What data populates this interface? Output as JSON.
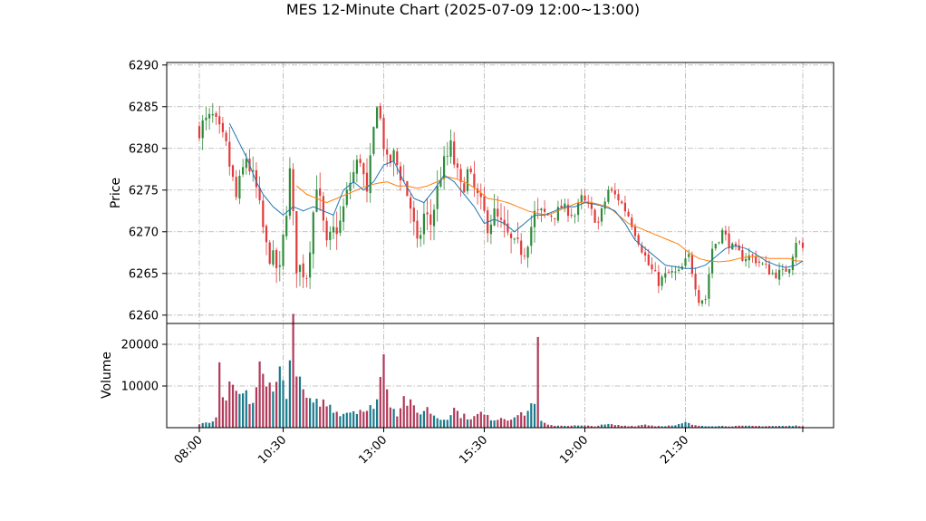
{
  "chart_data": {
    "type": "candlestick",
    "title": "MES 12-Minute Chart (2025-07-09 12:00~13:00)",
    "price_panel": {
      "ylabel": "Price",
      "ylim": [
        6259,
        6290.3
      ],
      "yticks": [
        6260,
        6265,
        6270,
        6275,
        6280,
        6285,
        6290
      ],
      "grid": true
    },
    "volume_panel": {
      "ylabel": "Volume",
      "ylim": [
        0,
        25000
      ],
      "yticks": [
        10000,
        20000
      ],
      "ytick_labels": [
        "10000",
        "20000"
      ],
      "grid": true
    },
    "x_axis": {
      "tick_labels": [
        "08:00",
        "10:30",
        "13:00",
        "15:30",
        "19:00",
        "21:30"
      ],
      "tick_rotation": 45
    },
    "colors": {
      "up": "#2e8b3a",
      "down": "#e03a3a",
      "vol_up": "#1b7a8c",
      "vol_down": "#b03a5a",
      "ma_short": "#1f77b4",
      "ma_long": "#ff7f0e"
    },
    "series": {
      "close_waypoints": [
        [
          0,
          6282.5
        ],
        [
          4,
          6283.6
        ],
        [
          8,
          6280
        ],
        [
          11,
          6274
        ],
        [
          14,
          6279
        ],
        [
          17,
          6275
        ],
        [
          20,
          6268
        ],
        [
          24,
          6265
        ],
        [
          27,
          6277
        ],
        [
          29,
          6266
        ],
        [
          32,
          6265
        ],
        [
          35,
          6276
        ],
        [
          38,
          6268
        ],
        [
          40,
          6270
        ],
        [
          42,
          6271
        ],
        [
          45,
          6276
        ],
        [
          48,
          6279
        ],
        [
          50,
          6274
        ],
        [
          53,
          6286
        ],
        [
          56,
          6278
        ],
        [
          58,
          6279
        ],
        [
          61,
          6276
        ],
        [
          63,
          6273
        ],
        [
          65,
          6268
        ],
        [
          67,
          6272
        ],
        [
          69,
          6271
        ],
        [
          72,
          6277
        ],
        [
          75,
          6280
        ],
        [
          78,
          6275
        ],
        [
          80,
          6277
        ],
        [
          83,
          6274
        ],
        [
          86,
          6271
        ],
        [
          88,
          6272
        ],
        [
          91,
          6270
        ],
        [
          94,
          6268
        ],
        [
          97,
          6268
        ],
        [
          100,
          6272
        ],
        [
          103,
          6272
        ],
        [
          106,
          6272
        ],
        [
          108,
          6273
        ],
        [
          112,
          6272
        ],
        [
          114,
          6274
        ],
        [
          116,
          6273
        ],
        [
          119,
          6271
        ],
        [
          122,
          6275
        ],
        [
          125,
          6274
        ],
        [
          128,
          6272
        ],
        [
          131,
          6269
        ],
        [
          134,
          6266
        ],
        [
          137,
          6264
        ],
        [
          140,
          6265
        ],
        [
          143,
          6265
        ],
        [
          146,
          6267
        ],
        [
          149,
          6262
        ],
        [
          151,
          6262
        ],
        [
          153,
          6268
        ],
        [
          156,
          6270
        ],
        [
          159,
          6268
        ],
        [
          162,
          6267
        ],
        [
          165,
          6267
        ],
        [
          168,
          6266
        ],
        [
          171,
          6265
        ],
        [
          174,
          6265
        ],
        [
          176,
          6266
        ],
        [
          178,
          6269
        ],
        [
          180,
          6268
        ]
      ],
      "ma_short_waypoints": [
        [
          9,
          6283
        ],
        [
          14,
          6279
        ],
        [
          17,
          6276
        ],
        [
          19,
          6274.5
        ],
        [
          22,
          6273
        ],
        [
          25,
          6272
        ],
        [
          28,
          6273
        ],
        [
          31,
          6272.5
        ],
        [
          34,
          6273
        ],
        [
          37,
          6272.5
        ],
        [
          40,
          6272
        ],
        [
          43,
          6275
        ],
        [
          46,
          6276
        ],
        [
          49,
          6275
        ],
        [
          52,
          6276
        ],
        [
          55,
          6278
        ],
        [
          58,
          6278.5
        ],
        [
          61,
          6276
        ],
        [
          64,
          6274
        ],
        [
          67,
          6273.5
        ],
        [
          70,
          6275
        ],
        [
          73,
          6276.8
        ],
        [
          76,
          6276
        ],
        [
          79,
          6274.5
        ],
        [
          82,
          6273
        ],
        [
          85,
          6271
        ],
        [
          88,
          6271.5
        ],
        [
          91,
          6271
        ],
        [
          94,
          6270
        ],
        [
          97,
          6271
        ],
        [
          100,
          6272
        ],
        [
          103,
          6272
        ],
        [
          106,
          6272.5
        ],
        [
          109,
          6273
        ],
        [
          112,
          6273
        ],
        [
          115,
          6273.5
        ],
        [
          118,
          6273.3
        ],
        [
          121,
          6273
        ],
        [
          124,
          6272.5
        ],
        [
          127,
          6271
        ],
        [
          130,
          6269
        ],
        [
          133,
          6268
        ],
        [
          136,
          6267
        ],
        [
          139,
          6266
        ],
        [
          142,
          6265.8
        ],
        [
          145,
          6265.6
        ],
        [
          148,
          6265.6
        ],
        [
          151,
          6266
        ],
        [
          154,
          6267
        ],
        [
          157,
          6268
        ],
        [
          160,
          6268.3
        ],
        [
          163,
          6268
        ],
        [
          166,
          6267.3
        ],
        [
          169,
          6266.5
        ],
        [
          172,
          6266
        ],
        [
          175,
          6265.7
        ],
        [
          178,
          6266
        ],
        [
          180,
          6266.5
        ]
      ],
      "ma_long_waypoints": [
        [
          29,
          6275.5
        ],
        [
          32,
          6274.5
        ],
        [
          35,
          6274
        ],
        [
          38,
          6273.5
        ],
        [
          41,
          6274
        ],
        [
          44,
          6274.5
        ],
        [
          47,
          6275
        ],
        [
          50,
          6275.5
        ],
        [
          53,
          6275.8
        ],
        [
          56,
          6276
        ],
        [
          59,
          6275.5
        ],
        [
          62,
          6275.5
        ],
        [
          65,
          6275.2
        ],
        [
          68,
          6275.5
        ],
        [
          71,
          6276
        ],
        [
          74,
          6276.6
        ],
        [
          77,
          6276.3
        ],
        [
          80,
          6275.8
        ],
        [
          83,
          6275
        ],
        [
          86,
          6274
        ],
        [
          89,
          6273.8
        ],
        [
          92,
          6273.5
        ],
        [
          95,
          6273
        ],
        [
          98,
          6272.5
        ],
        [
          101,
          6272.2
        ],
        [
          104,
          6272
        ],
        [
          107,
          6272.5
        ],
        [
          110,
          6273
        ],
        [
          113,
          6273.5
        ],
        [
          116,
          6273.6
        ],
        [
          119,
          6273.3
        ],
        [
          122,
          6273
        ],
        [
          125,
          6272
        ],
        [
          128,
          6271
        ],
        [
          131,
          6270.5
        ],
        [
          134,
          6270
        ],
        [
          137,
          6269.5
        ],
        [
          140,
          6269
        ],
        [
          143,
          6268.5
        ],
        [
          146,
          6267.5
        ],
        [
          149,
          6266.8
        ],
        [
          152,
          6266.5
        ],
        [
          155,
          6266.4
        ],
        [
          158,
          6266.5
        ],
        [
          161,
          6266.8
        ],
        [
          164,
          6267
        ],
        [
          167,
          6267
        ],
        [
          170,
          6266.8
        ],
        [
          173,
          6266.8
        ],
        [
          176,
          6266.8
        ],
        [
          178,
          6266.5
        ],
        [
          180,
          6266.5
        ]
      ],
      "volume_waypoints": [
        [
          0,
          800
        ],
        [
          3,
          1200
        ],
        [
          5,
          2000
        ],
        [
          6,
          14000
        ],
        [
          7,
          6000
        ],
        [
          9,
          9000
        ],
        [
          11,
          8000
        ],
        [
          14,
          7500
        ],
        [
          16,
          6000
        ],
        [
          18,
          14000
        ],
        [
          20,
          9000
        ],
        [
          22,
          11500
        ],
        [
          24,
          13000
        ],
        [
          26,
          9000
        ],
        [
          28,
          22500
        ],
        [
          30,
          10000
        ],
        [
          32,
          7000
        ],
        [
          34,
          5000
        ],
        [
          36,
          6500
        ],
        [
          39,
          5000
        ],
        [
          42,
          3500
        ],
        [
          45,
          4000
        ],
        [
          48,
          4500
        ],
        [
          50,
          3500
        ],
        [
          53,
          7000
        ],
        [
          55,
          16500
        ],
        [
          57,
          6000
        ],
        [
          59,
          3500
        ],
        [
          61,
          7000
        ],
        [
          63,
          5500
        ],
        [
          65,
          3500
        ],
        [
          68,
          4500
        ],
        [
          70,
          3000
        ],
        [
          72,
          2000
        ],
        [
          74,
          2500
        ],
        [
          76,
          4500
        ],
        [
          78,
          3000
        ],
        [
          80,
          2500
        ],
        [
          82,
          2500
        ],
        [
          84,
          3500
        ],
        [
          86,
          2500
        ],
        [
          88,
          2000
        ],
        [
          90,
          2500
        ],
        [
          92,
          2000
        ],
        [
          94,
          3000
        ],
        [
          96,
          3000
        ],
        [
          98,
          4000
        ],
        [
          100,
          7000
        ],
        [
          101,
          18000
        ],
        [
          102,
          1500
        ],
        [
          104,
          600
        ],
        [
          108,
          500
        ],
        [
          112,
          500
        ],
        [
          118,
          400
        ],
        [
          122,
          800
        ],
        [
          126,
          500
        ],
        [
          130,
          400
        ],
        [
          133,
          800
        ],
        [
          136,
          400
        ],
        [
          142,
          500
        ],
        [
          145,
          1200
        ],
        [
          148,
          500
        ],
        [
          155,
          400
        ],
        [
          165,
          400
        ],
        [
          175,
          400
        ],
        [
          180,
          500
        ]
      ]
    }
  }
}
